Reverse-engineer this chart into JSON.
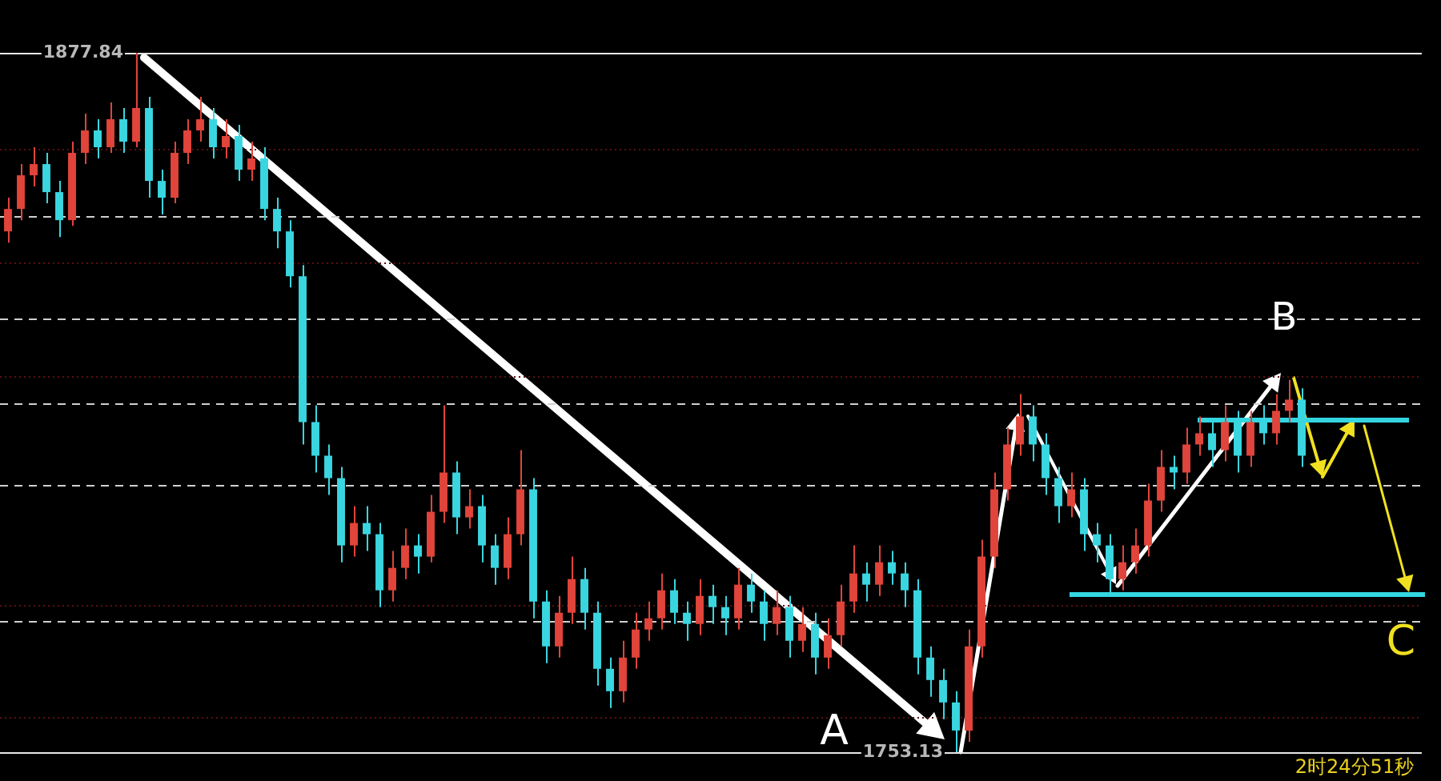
{
  "chart_data": {
    "type": "candlestick",
    "categories": [
      null,
      null,
      null,
      null,
      null,
      null,
      null,
      null,
      null,
      null,
      null,
      null,
      null,
      null,
      null,
      null,
      null,
      null,
      null,
      null,
      null,
      null,
      null,
      null,
      null,
      null,
      null,
      null,
      null,
      null,
      null,
      null,
      null,
      null,
      null,
      null,
      null,
      null,
      null,
      null,
      null,
      null,
      null,
      null,
      null,
      null,
      null,
      null,
      null,
      null,
      null,
      null,
      null,
      null,
      null,
      null,
      null,
      null,
      null,
      null,
      null,
      null,
      null,
      null,
      null,
      null,
      null,
      null,
      null,
      null,
      null,
      null,
      null,
      null,
      null,
      null,
      null,
      null,
      null,
      null,
      null,
      null,
      null,
      null,
      null,
      null,
      null,
      null,
      null,
      null,
      null,
      null,
      null,
      null,
      null,
      null,
      null,
      null,
      null,
      null,
      null,
      null
    ],
    "ohlc": [
      [
        1846,
        1852,
        1844,
        1850
      ],
      [
        1850,
        1858,
        1848,
        1856
      ],
      [
        1856,
        1861,
        1854,
        1858
      ],
      [
        1858,
        1860,
        1851,
        1853
      ],
      [
        1853,
        1855,
        1845,
        1848
      ],
      [
        1848,
        1862,
        1847,
        1860
      ],
      [
        1860,
        1867,
        1858,
        1864
      ],
      [
        1864,
        1866,
        1859,
        1861
      ],
      [
        1861,
        1869,
        1860,
        1866
      ],
      [
        1866,
        1868,
        1860,
        1862
      ],
      [
        1862,
        1877.84,
        1861,
        1868
      ],
      [
        1868,
        1870,
        1852,
        1855
      ],
      [
        1855,
        1857,
        1849,
        1852
      ],
      [
        1852,
        1862,
        1851,
        1860
      ],
      [
        1860,
        1866,
        1858,
        1864
      ],
      [
        1864,
        1870,
        1862,
        1866
      ],
      [
        1866,
        1868,
        1859,
        1861
      ],
      [
        1861,
        1866,
        1859,
        1863
      ],
      [
        1863,
        1865,
        1855,
        1857
      ],
      [
        1857,
        1862,
        1855,
        1859
      ],
      [
        1859,
        1861,
        1848,
        1850
      ],
      [
        1850,
        1852,
        1843,
        1846
      ],
      [
        1846,
        1848,
        1836,
        1838
      ],
      [
        1838,
        1840,
        1808,
        1812
      ],
      [
        1812,
        1815,
        1803,
        1806
      ],
      [
        1806,
        1808,
        1799,
        1802
      ],
      [
        1802,
        1804,
        1787,
        1790
      ],
      [
        1790,
        1797,
        1788,
        1794
      ],
      [
        1794,
        1797,
        1789,
        1792
      ],
      [
        1792,
        1794,
        1779,
        1782
      ],
      [
        1782,
        1789,
        1780,
        1786
      ],
      [
        1786,
        1793,
        1784,
        1790
      ],
      [
        1790,
        1792,
        1785,
        1788
      ],
      [
        1788,
        1799,
        1787,
        1796
      ],
      [
        1796,
        1815,
        1794,
        1803
      ],
      [
        1803,
        1805,
        1792,
        1795
      ],
      [
        1795,
        1800,
        1793,
        1797
      ],
      [
        1797,
        1799,
        1787,
        1790
      ],
      [
        1790,
        1792,
        1783,
        1786
      ],
      [
        1786,
        1795,
        1784,
        1792
      ],
      [
        1792,
        1807,
        1790,
        1800
      ],
      [
        1800,
        1802,
        1777,
        1780
      ],
      [
        1780,
        1782,
        1769,
        1772
      ],
      [
        1772,
        1781,
        1770,
        1778
      ],
      [
        1778,
        1788,
        1776,
        1784
      ],
      [
        1784,
        1786,
        1775,
        1778
      ],
      [
        1778,
        1780,
        1765,
        1768
      ],
      [
        1768,
        1770,
        1761,
        1764
      ],
      [
        1764,
        1773,
        1762,
        1770
      ],
      [
        1770,
        1778,
        1768,
        1775
      ],
      [
        1775,
        1780,
        1773,
        1777
      ],
      [
        1777,
        1785,
        1775,
        1782
      ],
      [
        1782,
        1784,
        1776,
        1778
      ],
      [
        1778,
        1780,
        1773,
        1776
      ],
      [
        1776,
        1784,
        1774,
        1781
      ],
      [
        1781,
        1783,
        1776,
        1779
      ],
      [
        1779,
        1781,
        1774,
        1777
      ],
      [
        1777,
        1786,
        1775,
        1783
      ],
      [
        1783,
        1785,
        1778,
        1780
      ],
      [
        1780,
        1782,
        1773,
        1776
      ],
      [
        1776,
        1782,
        1774,
        1779
      ],
      [
        1779,
        1781,
        1770,
        1773
      ],
      [
        1773,
        1779,
        1771,
        1776
      ],
      [
        1776,
        1778,
        1767,
        1770
      ],
      [
        1770,
        1777,
        1768,
        1774
      ],
      [
        1774,
        1783,
        1772,
        1780
      ],
      [
        1780,
        1790,
        1778,
        1785
      ],
      [
        1785,
        1787,
        1780,
        1783
      ],
      [
        1783,
        1790,
        1781,
        1787
      ],
      [
        1787,
        1789,
        1783,
        1785
      ],
      [
        1785,
        1787,
        1779,
        1782
      ],
      [
        1782,
        1784,
        1767,
        1770
      ],
      [
        1770,
        1772,
        1763,
        1766
      ],
      [
        1766,
        1768,
        1759,
        1762
      ],
      [
        1762,
        1764,
        1753.13,
        1757
      ],
      [
        1757,
        1775,
        1755,
        1772
      ],
      [
        1772,
        1791,
        1770,
        1788
      ],
      [
        1788,
        1803,
        1786,
        1800
      ],
      [
        1800,
        1811,
        1798,
        1808
      ],
      [
        1808,
        1817,
        1806,
        1813
      ],
      [
        1813,
        1815,
        1805,
        1808
      ],
      [
        1808,
        1810,
        1799,
        1802
      ],
      [
        1802,
        1804,
        1794,
        1797
      ],
      [
        1797,
        1803,
        1795,
        1800
      ],
      [
        1800,
        1802,
        1789,
        1792
      ],
      [
        1792,
        1794,
        1787,
        1790
      ],
      [
        1790,
        1792,
        1781,
        1784
      ],
      [
        1784,
        1790,
        1782,
        1787
      ],
      [
        1787,
        1793,
        1785,
        1790
      ],
      [
        1790,
        1801,
        1788,
        1798
      ],
      [
        1798,
        1807,
        1796,
        1804
      ],
      [
        1804,
        1806,
        1800,
        1803
      ],
      [
        1803,
        1811,
        1801,
        1808
      ],
      [
        1808,
        1813,
        1806,
        1810
      ],
      [
        1810,
        1812,
        1804,
        1807
      ],
      [
        1807,
        1815,
        1805,
        1812
      ],
      [
        1812,
        1814,
        1803,
        1806
      ],
      [
        1806,
        1814,
        1804,
        1812
      ],
      [
        1812,
        1815,
        1808,
        1810
      ],
      [
        1810,
        1817,
        1808,
        1814
      ],
      [
        1814,
        1819.5,
        1812,
        1816
      ],
      [
        1816,
        1818,
        1804,
        1806
      ]
    ],
    "colors": [
      "#e0443a",
      "#e0443a",
      "#e0443a",
      "#3ad6e0",
      "#3ad6e0",
      "#e0443a",
      "#e0443a",
      "#3ad6e0",
      "#e0443a",
      "#3ad6e0",
      "#e0443a",
      "#3ad6e0",
      "#3ad6e0",
      "#e0443a",
      "#e0443a",
      "#e0443a",
      "#3ad6e0",
      "#e0443a",
      "#3ad6e0",
      "#e0443a",
      "#3ad6e0",
      "#3ad6e0",
      "#3ad6e0",
      "#3ad6e0",
      "#3ad6e0",
      "#3ad6e0",
      "#3ad6e0",
      "#e0443a",
      "#3ad6e0",
      "#3ad6e0",
      "#e0443a",
      "#e0443a",
      "#3ad6e0",
      "#e0443a",
      "#e0443a",
      "#3ad6e0",
      "#e0443a",
      "#3ad6e0",
      "#3ad6e0",
      "#e0443a",
      "#e0443a",
      "#3ad6e0",
      "#3ad6e0",
      "#e0443a",
      "#e0443a",
      "#3ad6e0",
      "#3ad6e0",
      "#3ad6e0",
      "#e0443a",
      "#e0443a",
      "#e0443a",
      "#e0443a",
      "#3ad6e0",
      "#3ad6e0",
      "#e0443a",
      "#3ad6e0",
      "#3ad6e0",
      "#e0443a",
      "#3ad6e0",
      "#3ad6e0",
      "#e0443a",
      "#3ad6e0",
      "#e0443a",
      "#3ad6e0",
      "#e0443a",
      "#e0443a",
      "#e0443a",
      "#3ad6e0",
      "#e0443a",
      "#3ad6e0",
      "#3ad6e0",
      "#3ad6e0",
      "#3ad6e0",
      "#3ad6e0",
      "#3ad6e0",
      "#e0443a",
      "#e0443a",
      "#e0443a",
      "#e0443a",
      "#e0443a",
      "#3ad6e0",
      "#3ad6e0",
      "#3ad6e0",
      "#e0443a",
      "#3ad6e0",
      "#3ad6e0",
      "#3ad6e0",
      "#e0443a",
      "#e0443a",
      "#e0443a",
      "#e0443a",
      "#3ad6e0",
      "#e0443a",
      "#e0443a",
      "#3ad6e0",
      "#e0443a",
      "#3ad6e0",
      "#e0443a",
      "#3ad6e0",
      "#e0443a",
      "#e0443a",
      "#3ad6e0"
    ],
    "ref_lines": [
      {
        "axis": "y",
        "value": 1877.84,
        "color": "#e8e8e8",
        "line_style": "solid"
      },
      {
        "axis": "y",
        "value": 1753.13,
        "color": "#e8e8e8",
        "line_style": "solid"
      },
      {
        "axis": "y",
        "value": 1860.7,
        "color": "#5a1010",
        "line_style": "dotted"
      },
      {
        "axis": "y",
        "value": 1848.7,
        "color": "#d0d0d0",
        "line_style": "dashed"
      },
      {
        "axis": "y",
        "value": 1840.5,
        "color": "#5a1010",
        "line_style": "dotted"
      },
      {
        "axis": "y",
        "value": 1830.5,
        "color": "#d0d0d0",
        "line_style": "dashed"
      },
      {
        "axis": "y",
        "value": 1820.2,
        "color": "#5a1010",
        "line_style": "dotted"
      },
      {
        "axis": "y",
        "value": 1815.3,
        "color": "#d0d0d0",
        "line_style": "dashed"
      },
      {
        "axis": "y",
        "value": 1800.8,
        "color": "#d0d0d0",
        "line_style": "dashed"
      },
      {
        "axis": "y",
        "value": 1779.4,
        "color": "#5a1010",
        "line_style": "dotted"
      },
      {
        "axis": "y",
        "value": 1776.5,
        "color": "#d0d0d0",
        "line_style": "dashed"
      },
      {
        "axis": "y",
        "value": 1759.4,
        "color": "#5a1010",
        "line_style": "dotted"
      },
      {
        "axis": "y",
        "value": 1812.5,
        "color": "#33d6e0",
        "line_style": "solid"
      },
      {
        "axis": "y",
        "value": 1781.4,
        "color": "#33d6e0",
        "line_style": "solid"
      }
    ],
    "annotations": [
      "1877.84",
      "1753.13",
      "A",
      "B",
      "C",
      "2时24分51秒"
    ]
  }
}
